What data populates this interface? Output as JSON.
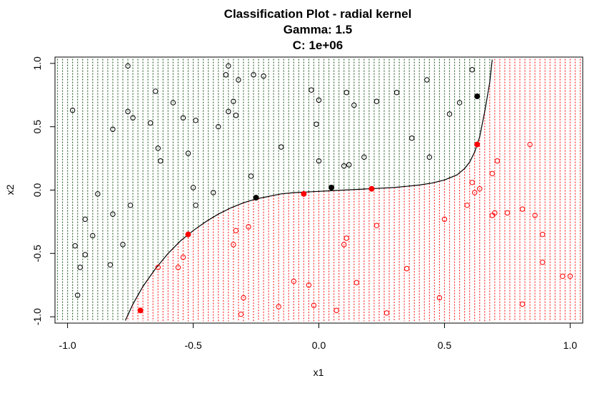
{
  "chart_data": {
    "type": "scatter",
    "title": "Classification Plot - radial kernel",
    "subtitle_lines": [
      "Gamma: 1.5",
      "C: 1e+06"
    ],
    "xlabel": "x1",
    "ylabel": "x2",
    "xlim": [
      -1.05,
      1.05
    ],
    "ylim": [
      -1.05,
      1.05
    ],
    "xticks": [
      -1.0,
      -0.5,
      0.0,
      0.5,
      1.0
    ],
    "xtick_labels": [
      "-1.0",
      "-0.5",
      "0.0",
      "0.5",
      "1.0"
    ],
    "yticks": [
      -1.0,
      -0.5,
      0.0,
      0.5,
      1.0
    ],
    "ytick_labels": [
      "-1.0",
      "-0.5",
      "0.0",
      "0.5",
      "1.0"
    ],
    "grid": false,
    "background_grid": {
      "x_start": -1.04,
      "x_end": 1.04,
      "y_start": -1.035,
      "y_end": 1.035,
      "columns": 105,
      "class_colors": {
        "black": "#3a6b3a",
        "red": "#ff3030"
      }
    },
    "boundary": [
      [
        -0.77,
        -1.03
      ],
      [
        -0.74,
        -0.9
      ],
      [
        -0.7,
        -0.76
      ],
      [
        -0.65,
        -0.62
      ],
      [
        -0.6,
        -0.5
      ],
      [
        -0.55,
        -0.4
      ],
      [
        -0.5,
        -0.32
      ],
      [
        -0.45,
        -0.25
      ],
      [
        -0.4,
        -0.19
      ],
      [
        -0.35,
        -0.14
      ],
      [
        -0.3,
        -0.1
      ],
      [
        -0.25,
        -0.07
      ],
      [
        -0.2,
        -0.05
      ],
      [
        -0.15,
        -0.03
      ],
      [
        -0.1,
        -0.02
      ],
      [
        -0.05,
        -0.015
      ],
      [
        0.0,
        -0.01
      ],
      [
        0.05,
        -0.005
      ],
      [
        0.1,
        0.0
      ],
      [
        0.15,
        0.005
      ],
      [
        0.2,
        0.01
      ],
      [
        0.25,
        0.015
      ],
      [
        0.3,
        0.02
      ],
      [
        0.35,
        0.03
      ],
      [
        0.4,
        0.04
      ],
      [
        0.45,
        0.055
      ],
      [
        0.5,
        0.08
      ],
      [
        0.55,
        0.12
      ],
      [
        0.58,
        0.17
      ],
      [
        0.6,
        0.22
      ],
      [
        0.62,
        0.3
      ],
      [
        0.64,
        0.42
      ],
      [
        0.66,
        0.62
      ],
      [
        0.68,
        0.85
      ],
      [
        0.69,
        1.03
      ]
    ],
    "series": [
      {
        "class": "black",
        "color": "#000000",
        "points": [
          [
            -0.98,
            0.63
          ],
          [
            -0.76,
            0.98
          ],
          [
            -0.76,
            0.62
          ],
          [
            -0.74,
            0.57
          ],
          [
            -0.65,
            0.78
          ],
          [
            -0.58,
            0.69
          ],
          [
            -0.54,
            0.57
          ],
          [
            -0.67,
            0.53
          ],
          [
            -0.82,
            0.48
          ],
          [
            -0.64,
            0.33
          ],
          [
            -0.63,
            0.23
          ],
          [
            -0.52,
            0.29
          ],
          [
            -0.49,
            0.55
          ],
          [
            -0.36,
            0.98
          ],
          [
            -0.37,
            0.91
          ],
          [
            -0.36,
            0.62
          ],
          [
            -0.34,
            0.7
          ],
          [
            -0.33,
            0.59
          ],
          [
            -0.4,
            0.5
          ],
          [
            -0.32,
            0.87
          ],
          [
            -0.26,
            0.91
          ],
          [
            -0.22,
            0.9
          ],
          [
            -0.15,
            0.34
          ],
          [
            -0.27,
            0.11
          ],
          [
            -0.5,
            0.02
          ],
          [
            -0.42,
            -0.02
          ],
          [
            -0.49,
            -0.12
          ],
          [
            -0.88,
            -0.03
          ],
          [
            -0.75,
            -0.12
          ],
          [
            -0.82,
            -0.19
          ],
          [
            -0.93,
            -0.23
          ],
          [
            -0.9,
            -0.36
          ],
          [
            -0.97,
            -0.44
          ],
          [
            -0.78,
            -0.43
          ],
          [
            -0.93,
            -0.51
          ],
          [
            -0.95,
            -0.61
          ],
          [
            -0.83,
            -0.59
          ],
          [
            -0.96,
            -0.83
          ],
          [
            -0.03,
            0.79
          ],
          [
            0.0,
            0.71
          ],
          [
            -0.01,
            0.52
          ],
          [
            0.0,
            0.23
          ],
          [
            0.11,
            0.77
          ],
          [
            0.14,
            0.67
          ],
          [
            0.1,
            0.19
          ],
          [
            0.12,
            0.2
          ],
          [
            0.18,
            0.26
          ],
          [
            0.23,
            0.7
          ],
          [
            0.31,
            0.77
          ],
          [
            0.37,
            0.41
          ],
          [
            0.43,
            0.87
          ],
          [
            0.44,
            0.26
          ],
          [
            0.52,
            0.6
          ],
          [
            0.56,
            0.69
          ],
          [
            0.61,
            0.95
          ]
        ]
      },
      {
        "class": "red",
        "color": "#ff0000",
        "points": [
          [
            -0.64,
            -0.61
          ],
          [
            -0.56,
            -0.61
          ],
          [
            -0.54,
            -0.53
          ],
          [
            -0.33,
            -0.32
          ],
          [
            -0.34,
            -0.43
          ],
          [
            -0.28,
            -0.29
          ],
          [
            -0.3,
            -0.85
          ],
          [
            -0.31,
            -0.98
          ],
          [
            -0.16,
            -0.92
          ],
          [
            -0.1,
            -0.72
          ],
          [
            -0.04,
            -0.75
          ],
          [
            -0.02,
            -0.91
          ],
          [
            0.07,
            -0.95
          ],
          [
            0.1,
            -0.43
          ],
          [
            0.11,
            -0.38
          ],
          [
            0.15,
            -0.73
          ],
          [
            0.23,
            -0.28
          ],
          [
            0.27,
            -0.97
          ],
          [
            0.35,
            -0.62
          ],
          [
            0.48,
            -0.85
          ],
          [
            0.5,
            -0.23
          ],
          [
            0.59,
            -0.12
          ],
          [
            0.61,
            0.06
          ],
          [
            0.62,
            -0.02
          ],
          [
            0.64,
            0.01
          ],
          [
            0.71,
            0.23
          ],
          [
            0.69,
            0.13
          ],
          [
            0.69,
            -0.2
          ],
          [
            0.7,
            -0.18
          ],
          [
            0.75,
            -0.18
          ],
          [
            0.81,
            -0.15
          ],
          [
            0.84,
            0.36
          ],
          [
            0.86,
            -0.2
          ],
          [
            0.89,
            -0.35
          ],
          [
            0.89,
            -0.57
          ],
          [
            0.81,
            -0.9
          ],
          [
            0.97,
            -0.68
          ],
          [
            1.0,
            -0.68
          ]
        ]
      }
    ],
    "support_vectors": [
      {
        "class": "black",
        "color": "#000000",
        "points": [
          [
            -0.25,
            -0.06
          ],
          [
            0.05,
            0.02
          ],
          [
            0.63,
            0.74
          ]
        ]
      },
      {
        "class": "red",
        "color": "#ff0000",
        "points": [
          [
            -0.52,
            -0.35
          ],
          [
            -0.06,
            -0.03
          ],
          [
            0.21,
            0.01
          ],
          [
            0.63,
            0.36
          ],
          [
            -0.71,
            -0.95
          ]
        ]
      }
    ]
  }
}
